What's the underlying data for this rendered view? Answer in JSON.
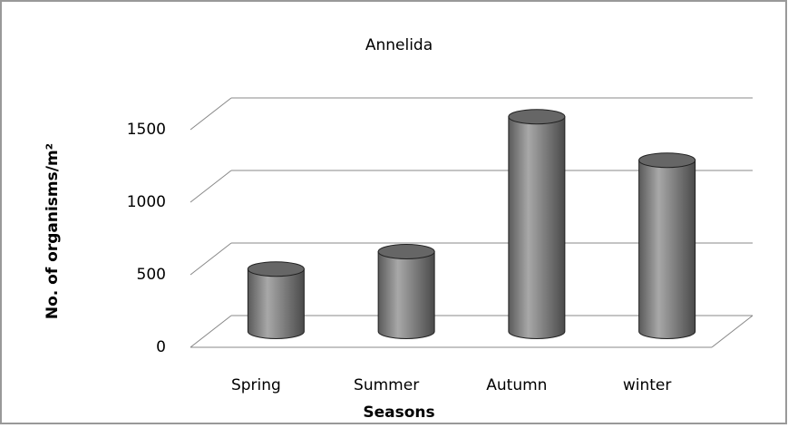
{
  "chart_data": {
    "type": "bar3d",
    "title": "Annelida",
    "x_label": "Seasons",
    "y_label": "No. of organisms/m²",
    "categories": [
      "Spring",
      "Summer",
      "Autumn",
      "winter"
    ],
    "values": [
      430,
      550,
      1480,
      1180
    ],
    "color": "#7a7a7a",
    "ylim": [
      0,
      1500
    ],
    "yticks": [
      0,
      500,
      1000,
      1500
    ],
    "grid": true
  }
}
